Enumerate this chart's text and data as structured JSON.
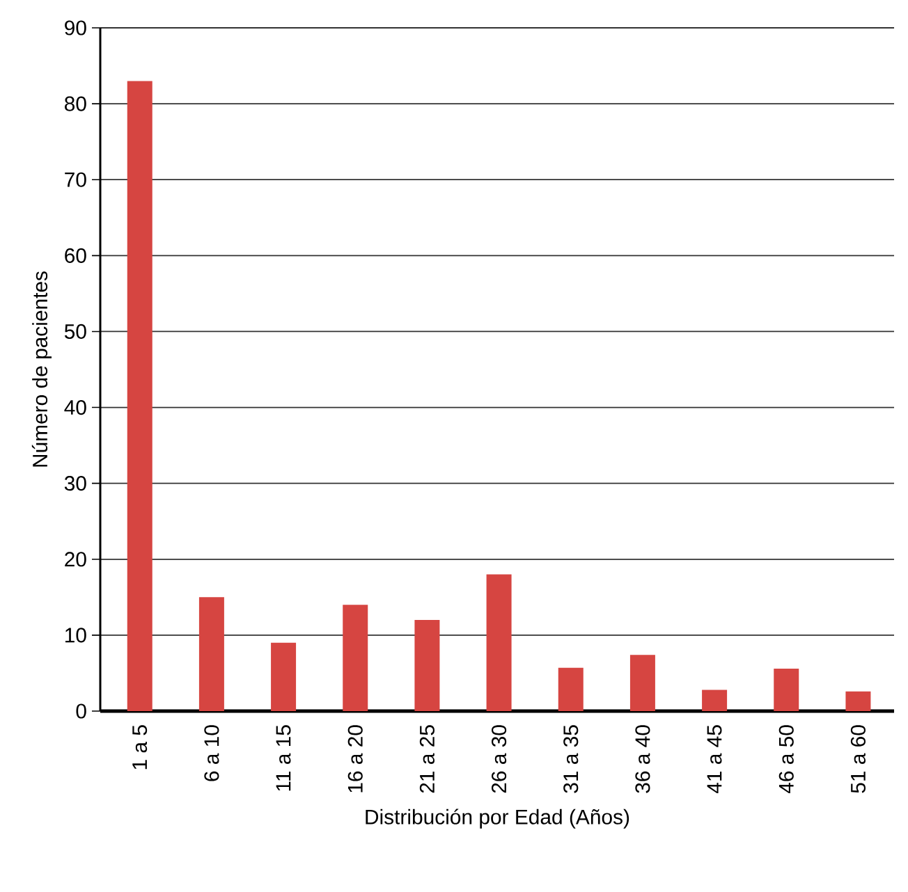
{
  "chart_data": {
    "type": "bar",
    "xlabel": "Distribución por Edad (Años)",
    "ylabel": "Número de pacientes",
    "categories": [
      "1 a 5",
      "6 a 10",
      "11 a 15",
      "16 a 20",
      "21 a 25",
      "26 a 30",
      "31 a 35",
      "36 a 40",
      "41 a 45",
      "46 a 50",
      "51 a 60"
    ],
    "values": [
      83,
      15,
      9,
      14,
      12,
      18,
      5.7,
      7.4,
      2.8,
      5.6,
      2.6
    ],
    "color": "#d64541",
    "ylim": [
      0,
      90
    ],
    "yticks": [
      0,
      10,
      20,
      30,
      40,
      50,
      60,
      70,
      80,
      90
    ],
    "grid": "y"
  }
}
